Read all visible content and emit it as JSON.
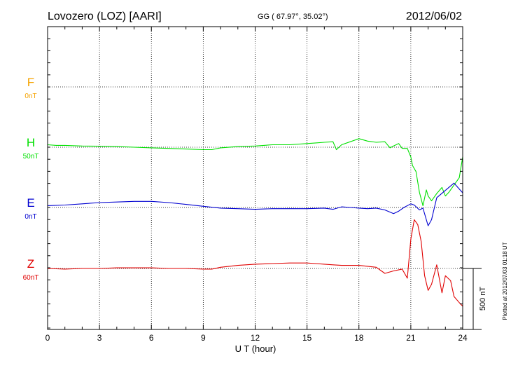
{
  "header": {
    "station": "Lovozero (LOZ)  [AARI]",
    "coords": "GG ( 67.97°,  35.02°)",
    "date": "2012/06/02"
  },
  "footer": {
    "plotted": "Plotted at 2012/07/03 01:18 UT"
  },
  "colors": {
    "F": "#f5a300",
    "H": "#00e000",
    "E": "#0000d0",
    "Z": "#e00000"
  },
  "chart_data": {
    "type": "line",
    "xlabel": "U T (hour)",
    "xlim": [
      0,
      24
    ],
    "xticks": [
      "0",
      "3",
      "6",
      "9",
      "12",
      "15",
      "18",
      "21",
      "24"
    ],
    "grid": true,
    "scale_bar_label": "500 nT",
    "scale_bar_nT": 500,
    "panel_height_nT": 500,
    "channels": [
      {
        "name": "F",
        "offset": "0nT"
      },
      {
        "name": "H",
        "offset": "50nT"
      },
      {
        "name": "E",
        "offset": "0nT"
      },
      {
        "name": "Z",
        "offset": "60nT"
      }
    ],
    "series": [
      {
        "name": "H",
        "x": [
          0,
          0.5,
          1,
          2,
          3,
          4,
          5,
          6,
          7,
          8,
          9,
          9.5,
          10,
          11,
          12,
          12.5,
          13,
          14,
          15,
          15.5,
          16,
          16.5,
          16.7,
          17,
          17.5,
          18,
          18.5,
          19,
          19.5,
          19.8,
          20,
          20.3,
          20.5,
          20.8,
          21,
          21.1,
          21.3,
          21.5,
          21.7,
          21.9,
          22,
          22.2,
          22.5,
          22.8,
          23,
          23.2,
          23.5,
          23.8,
          24
        ],
        "y": [
          20,
          15,
          15,
          10,
          8,
          5,
          0,
          -5,
          -10,
          -15,
          -20,
          -20,
          -5,
          5,
          10,
          15,
          20,
          20,
          30,
          35,
          40,
          45,
          -20,
          20,
          45,
          70,
          50,
          40,
          45,
          -5,
          10,
          30,
          -10,
          -10,
          -80,
          -150,
          -200,
          -370,
          -480,
          -350,
          -400,
          -440,
          -380,
          -330,
          -400,
          -370,
          -310,
          -250,
          -80
        ]
      },
      {
        "name": "E",
        "x": [
          0,
          1,
          2,
          3,
          4,
          5,
          6,
          7,
          8,
          9,
          10,
          11,
          12,
          13,
          14,
          15,
          16,
          16.5,
          17,
          18,
          18.5,
          19,
          19.5,
          20,
          20.3,
          20.6,
          21,
          21.2,
          21.5,
          21.7,
          22,
          22.2,
          22.5,
          23,
          23.5,
          24
        ],
        "y": [
          15,
          20,
          30,
          40,
          45,
          50,
          50,
          40,
          25,
          10,
          -5,
          -10,
          -15,
          -10,
          -10,
          -10,
          -5,
          -15,
          5,
          -5,
          -10,
          -5,
          -20,
          -50,
          -30,
          0,
          30,
          20,
          -20,
          -5,
          -150,
          -100,
          80,
          140,
          200,
          120
        ]
      },
      {
        "name": "Z",
        "x": [
          0,
          1,
          2,
          3,
          4,
          5,
          6,
          7,
          8,
          9,
          9.5,
          10,
          11,
          12,
          13,
          14,
          15,
          15.5,
          16,
          16.5,
          17,
          18,
          19,
          19.5,
          20,
          20.5,
          20.8,
          21,
          21.2,
          21.4,
          21.6,
          21.8,
          22,
          22.2,
          22.5,
          22.8,
          23,
          23.3,
          23.5,
          23.8,
          24
        ],
        "y": [
          0,
          -5,
          0,
          0,
          5,
          5,
          5,
          0,
          0,
          -5,
          -5,
          10,
          25,
          35,
          40,
          45,
          45,
          40,
          35,
          30,
          25,
          25,
          10,
          -40,
          -20,
          -5,
          -80,
          240,
          400,
          360,
          220,
          -60,
          -180,
          -130,
          30,
          -200,
          -60,
          -100,
          -230,
          -280,
          -310
        ]
      },
      {
        "name": "F",
        "x": [],
        "y": []
      }
    ]
  }
}
